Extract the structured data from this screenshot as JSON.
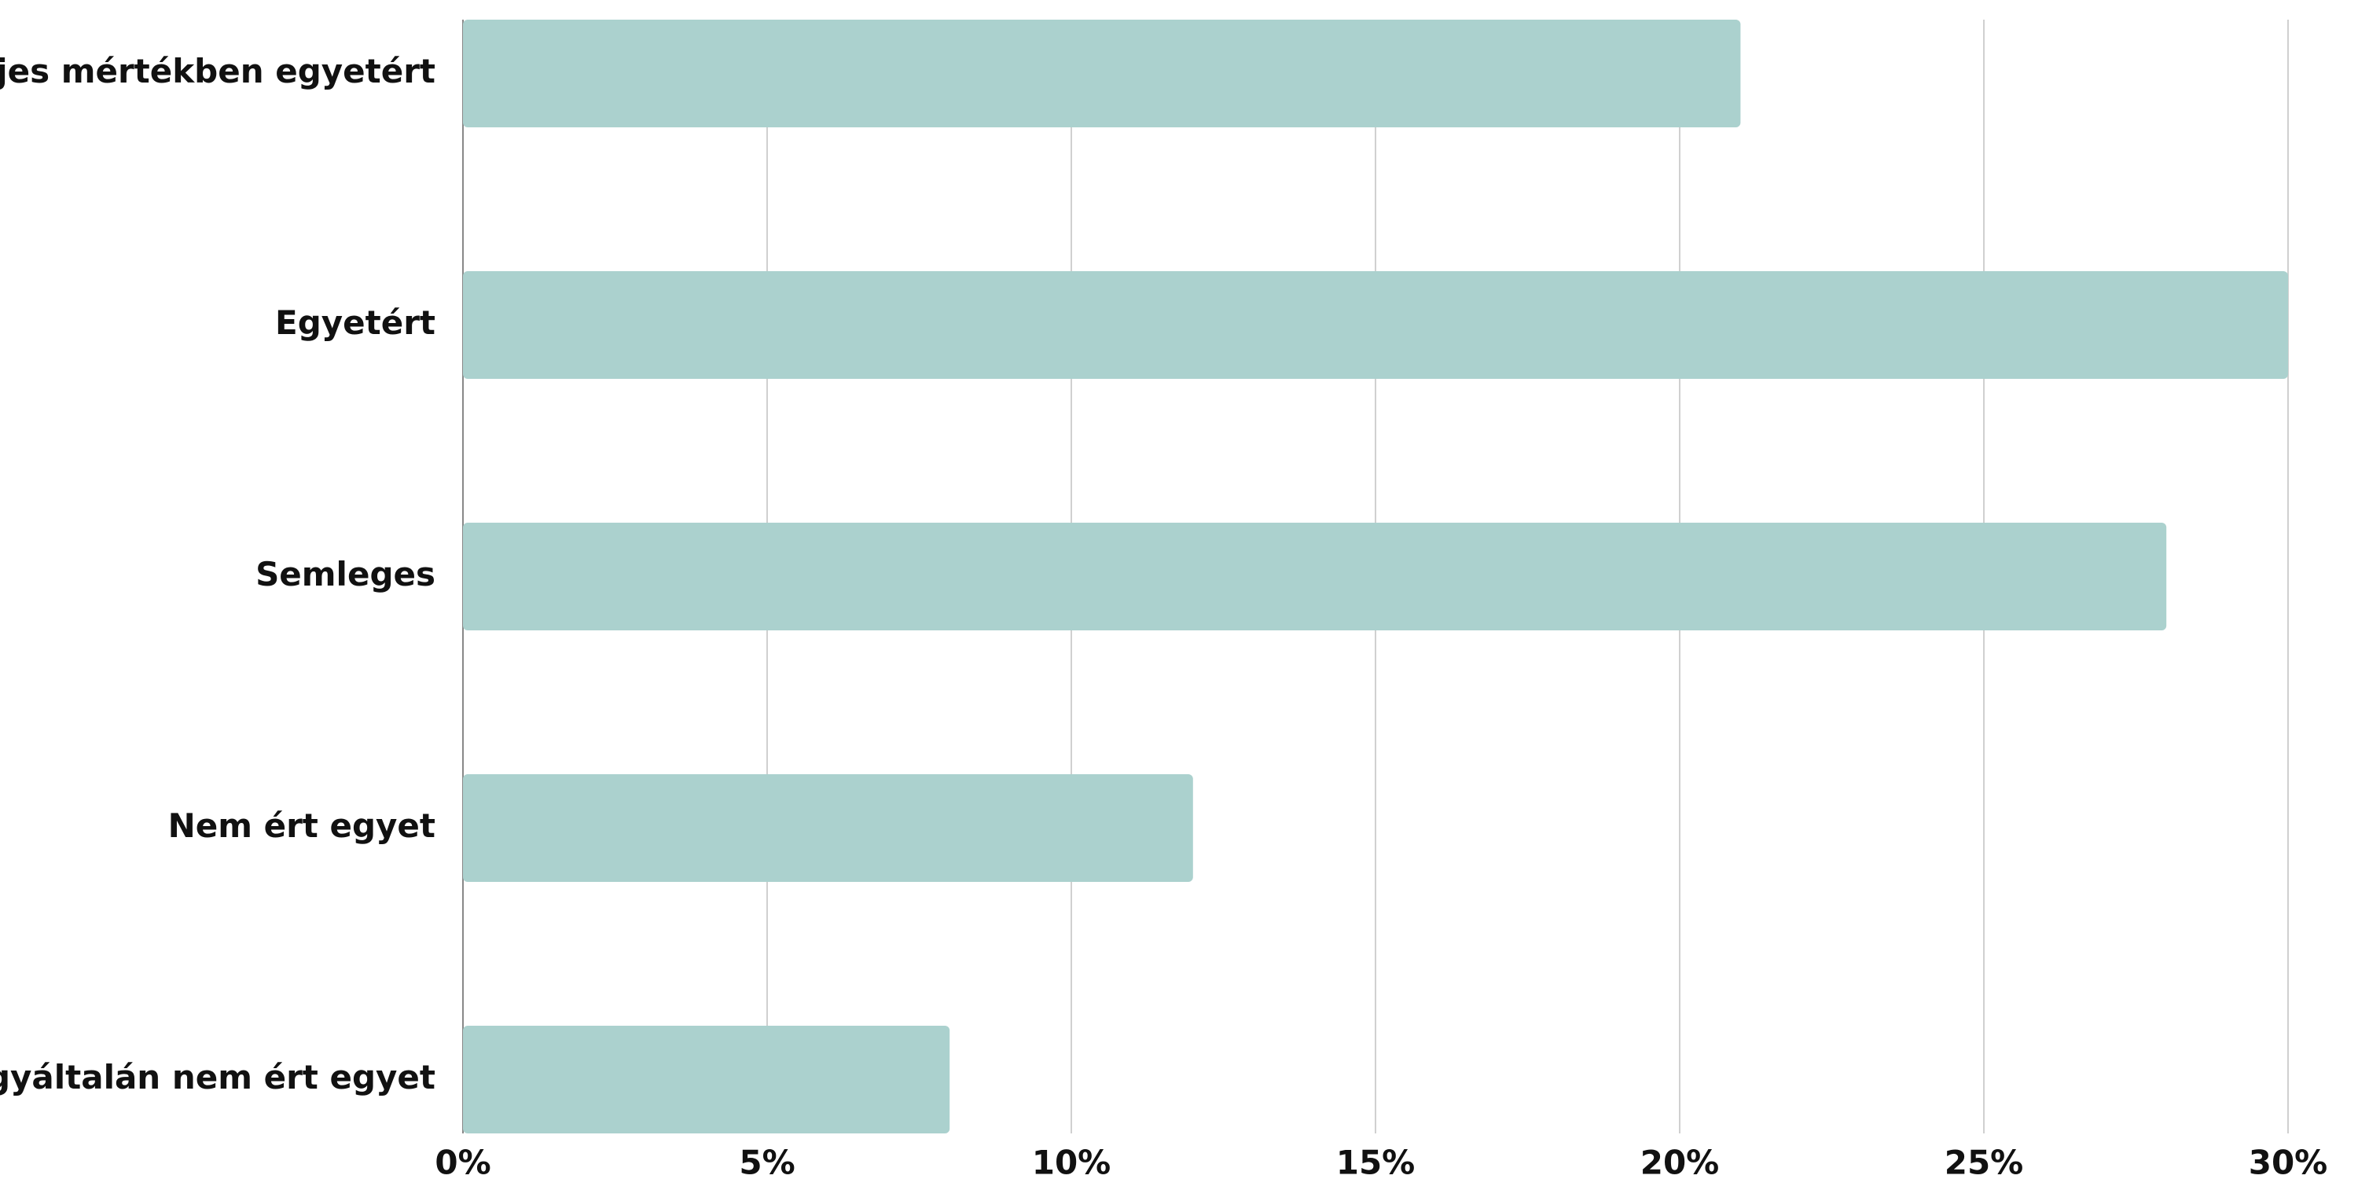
{
  "chart_data": {
    "type": "hbar",
    "categories": [
      "Teljes mértékben egyetért",
      "Egyetért",
      "Semleges",
      "Nem ért egyet",
      "Egyáltalán nem ért egyet"
    ],
    "values": [
      21,
      30,
      28,
      12,
      8
    ],
    "color": "#abd1ce",
    "xlim": [
      0,
      30
    ],
    "xticks": [
      {
        "value": 0,
        "label": "0%"
      },
      {
        "value": 5,
        "label": "5%"
      },
      {
        "value": 10,
        "label": "10%"
      },
      {
        "value": 15,
        "label": "15%"
      },
      {
        "value": 20,
        "label": "20%"
      },
      {
        "value": 25,
        "label": "25%"
      },
      {
        "value": 30,
        "label": "30%"
      }
    ],
    "grid": true
  }
}
